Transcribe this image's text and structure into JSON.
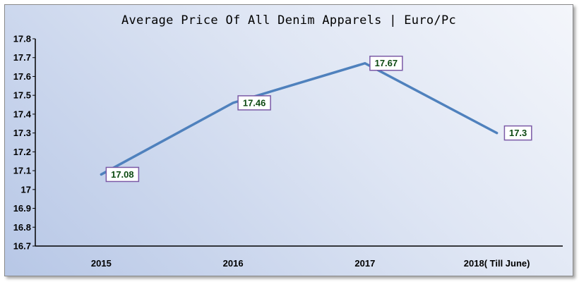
{
  "chart_data": {
    "type": "line",
    "title": "Average Price Of All Denim Apparels | Euro/Pc",
    "categories": [
      "2015",
      "2016",
      "2017",
      "2018( Till June)"
    ],
    "series": [
      {
        "values": [
          17.08,
          17.46,
          17.67,
          17.3
        ]
      }
    ],
    "data_labels": [
      "17.08",
      "17.46",
      "17.67",
      "17.3"
    ],
    "ylim": [
      16.7,
      17.8
    ],
    "yticks": [
      "16.7",
      "16.8",
      "16.9",
      "17",
      "17.1",
      "17.2",
      "17.3",
      "17.4",
      "17.5",
      "17.6",
      "17.7",
      "17.8"
    ],
    "ytick_values": [
      16.7,
      16.8,
      16.9,
      17.0,
      17.1,
      17.2,
      17.3,
      17.4,
      17.5,
      17.6,
      17.7,
      17.8
    ],
    "grid": false,
    "legend": "none",
    "colors": {
      "line": "#4f81bd",
      "label_border": "#7b5aa6",
      "label_text": "#0d4a12"
    }
  }
}
